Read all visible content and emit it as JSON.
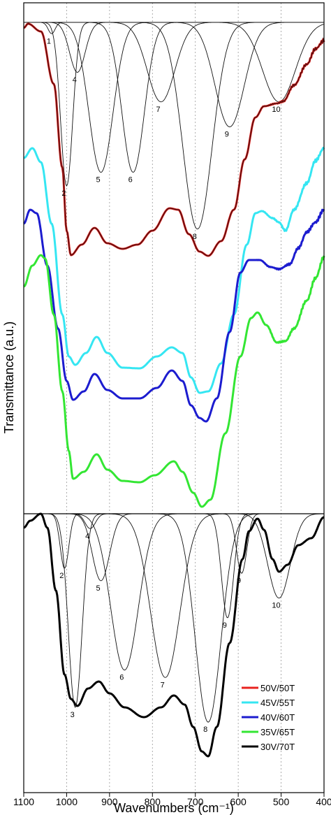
{
  "chart_data": {
    "type": "line",
    "xlabel": "Wavenumbers (cm⁻¹)",
    "ylabel": "Transmittance (a.u.)",
    "xlim": [
      1100,
      400
    ],
    "x_reversed": true,
    "xticks": [
      1100,
      1000,
      900,
      800,
      700,
      600,
      500,
      400
    ],
    "grid": "vertical dotted",
    "legend_position": "bottom-right",
    "series": [
      {
        "name": "50V/50T",
        "color": "#e8231f",
        "panel": "top"
      },
      {
        "name": "45V/55T",
        "color": "#35e6f2",
        "panel": "top"
      },
      {
        "name": "40V/60T",
        "color": "#1c1ccf",
        "panel": "top"
      },
      {
        "name": "35V/65T",
        "color": "#33e633",
        "panel": "top"
      },
      {
        "name": "30V/70T",
        "color": "#000000",
        "panel": "bottom"
      }
    ],
    "top_panel_peaks": [
      {
        "label": "1",
        "x": 1035,
        "depth": 0.05
      },
      {
        "label": "2",
        "x": 1000,
        "depth": 0.72
      },
      {
        "label": "4",
        "x": 975,
        "depth": 0.22
      },
      {
        "label": "5",
        "x": 920,
        "depth": 0.66
      },
      {
        "label": "6",
        "x": 845,
        "depth": 0.66
      },
      {
        "label": "7",
        "x": 780,
        "depth": 0.35
      },
      {
        "label": "8",
        "x": 695,
        "depth": 0.91
      },
      {
        "label": "9",
        "x": 620,
        "depth": 0.46
      },
      {
        "label": "10",
        "x": 505,
        "depth": 0.35
      }
    ],
    "bottom_panel_peaks": [
      {
        "label": "2",
        "x": 1005,
        "depth": 0.22
      },
      {
        "label": "3",
        "x": 980,
        "depth": 0.78
      },
      {
        "label": "4",
        "x": 945,
        "depth": 0.06
      },
      {
        "label": "5",
        "x": 920,
        "depth": 0.27
      },
      {
        "label": "6",
        "x": 865,
        "depth": 0.63
      },
      {
        "label": "7",
        "x": 770,
        "depth": 0.66
      },
      {
        "label": "8",
        "x": 670,
        "depth": 0.84
      },
      {
        "label": "9",
        "x": 625,
        "depth": 0.42
      },
      {
        "label": "9",
        "x": 592,
        "depth": 0.24
      },
      {
        "label": "10",
        "x": 505,
        "depth": 0.34
      }
    ]
  }
}
